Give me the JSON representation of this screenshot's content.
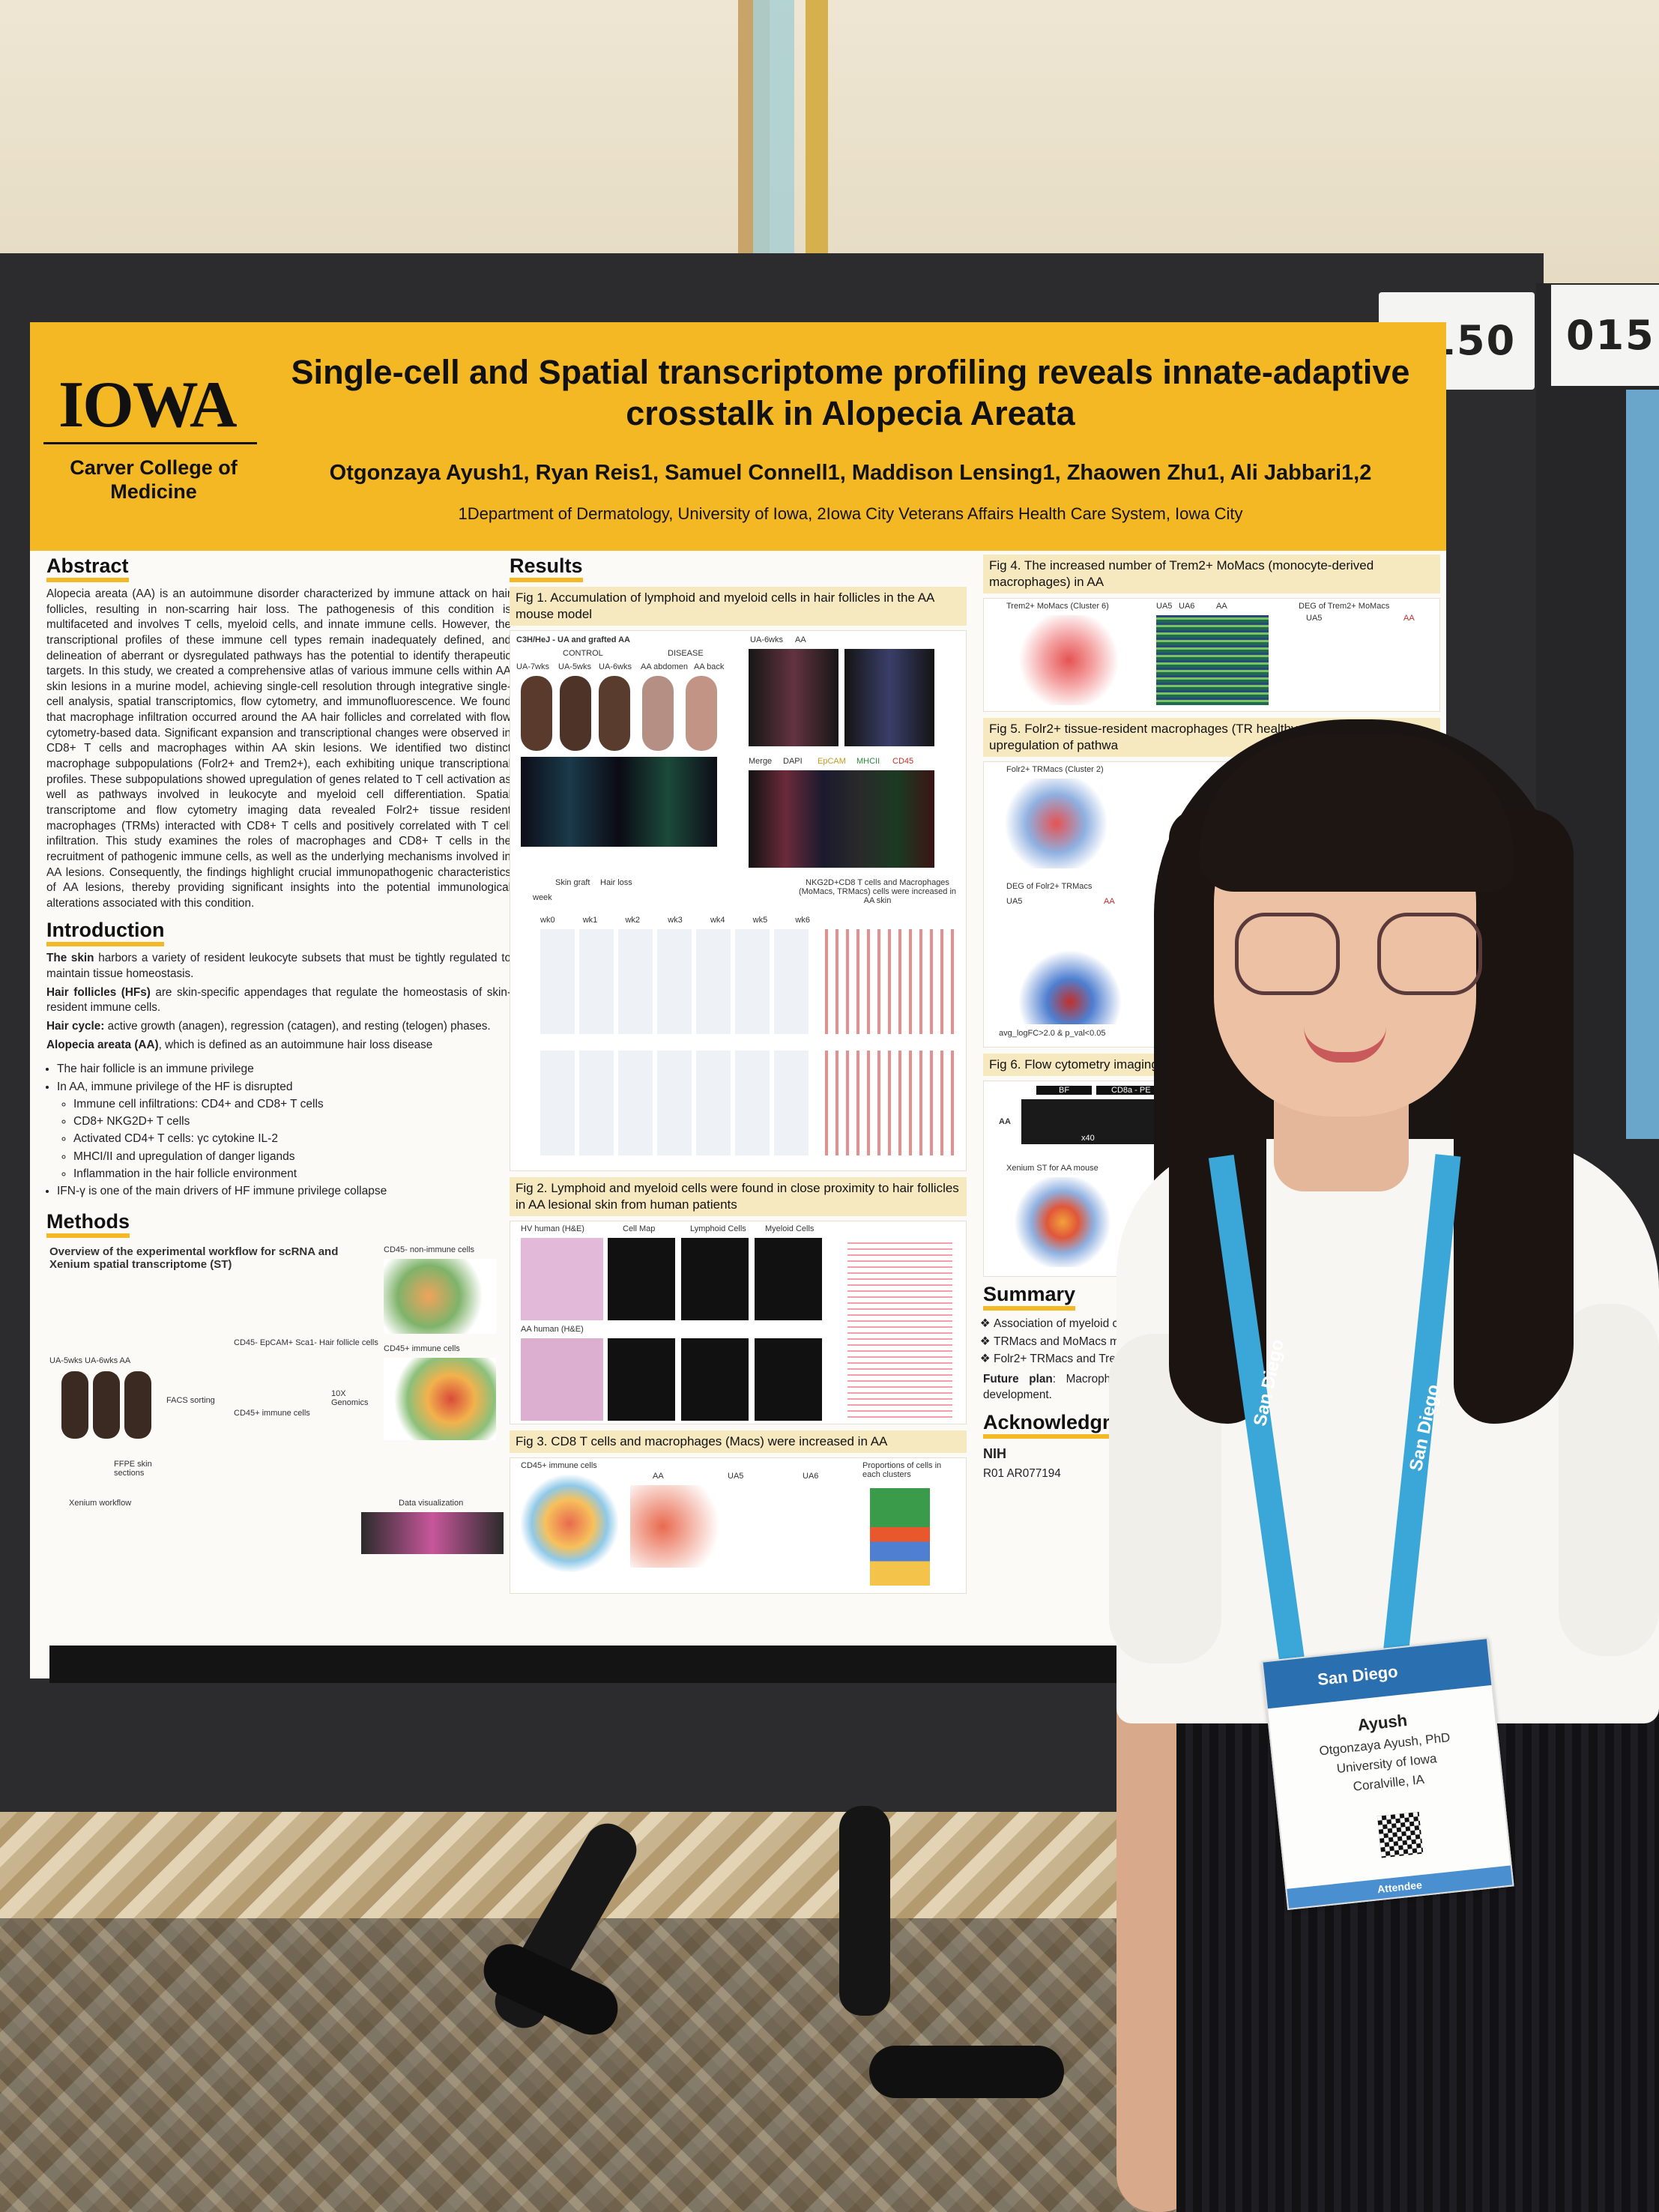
{
  "board": {
    "id": "0150",
    "id_next": "015"
  },
  "poster": {
    "logo": "IOWA",
    "college": "Carver College of Medicine",
    "title": "Single-cell and Spatial transcriptome profiling reveals innate-adaptive crosstalk in Alopecia Areata",
    "authors": "Otgonzaya Ayush1, Ryan Reis1, Samuel Connell1, Maddison Lensing1, Zhaowen Zhu1, Ali Jabbari1,2",
    "affiliations": "1Department of Dermatology, University of Iowa, 2Iowa City Veterans Affairs Health Care System, Iowa City",
    "abstract": {
      "heading": "Abstract",
      "text": "Alopecia areata (AA) is an autoimmune disorder characterized by immune attack on hair follicles, resulting in non-scarring hair loss. The pathogenesis of this condition is multifaceted and involves T cells, myeloid cells, and innate immune cells. However, the transcriptional profiles of these immune cell types remain inadequately defined, and delineation of aberrant or dysregulated pathways has the potential to identify therapeutic targets. In this study, we created a comprehensive atlas of various immune cells within AA skin lesions in a murine model, achieving single-cell resolution through integrative single-cell analysis, spatial transcriptomics, flow cytometry, and immunofluorescence. We found that macrophage infiltration occurred around the AA hair follicles and correlated with flow cytometry-based data. Significant expansion and transcriptional changes were observed in CD8+ T cells and macrophages within AA skin lesions. We identified two distinct macrophage subpopulations (Folr2+ and Trem2+), each exhibiting unique transcriptional profiles. These subpopulations showed upregulation of genes related to T cell activation as well as pathways involved in leukocyte and myeloid cell differentiation. Spatial transcriptome and flow cytometry imaging data revealed Folr2+ tissue resident macrophages (TRMs) interacted with CD8+ T cells and positively correlated with T cell infiltration. This study examines the roles of macrophages and CD8+ T cells in the recruitment of pathogenic immune cells, as well as the underlying mechanisms involved in AA lesions. Consequently, the findings highlight crucial immunopathogenic characteristics of AA lesions, thereby providing significant insights into the potential immunological alterations associated with this condition."
    },
    "introduction": {
      "heading": "Introduction",
      "p1_bold": "The skin",
      "p1": " harbors a variety of resident leukocyte subsets that must be tightly regulated to maintain tissue homeostasis.",
      "p2_bold": "Hair follicles (HFs)",
      "p2": " are skin-specific appendages that regulate the homeostasis of skin-resident immune cells.",
      "p3_bold": "Hair cycle:",
      "p3": " active growth (anagen), regression (catagen), and resting (telogen) phases.",
      "p4_bold": "Alopecia areata (AA)",
      "p4": ", which is defined as an autoimmune hair loss disease",
      "bullets": [
        "The hair follicle is an immune privilege",
        "In AA, immune privilege of the HF is disrupted"
      ],
      "sub": [
        "Immune cell infiltrations: CD4+ and CD8+ T cells",
        "CD8+ NKG2D+ T cells",
        "Activated CD4+ T cells: γc cytokine IL-2",
        "MHCI/II and upregulation of danger ligands",
        "Inflammation in the hair follicle environment"
      ],
      "last": "IFN-γ is one of the main drivers of HF immune privilege collapse"
    },
    "methods": {
      "heading": "Methods",
      "overview": "Overview of the experimental workflow for scRNA and Xenium spatial transcriptome (ST)",
      "labels": [
        "UA-5wks UA-6wks AA",
        "FACS sorting",
        "CD45- EpCAM+ Sca1- Hair follicle cells",
        "CD45+ immune cells",
        "10X Genomics",
        "FFPE skin sections",
        "Xenium workflow",
        "Data visualization",
        "CD45- non-immune cells",
        "CD45+ immune cells"
      ]
    },
    "results": {
      "heading": "Results",
      "fig1": "Fig 1. Accumulation of lymphoid and myeloid cells in hair follicles in the AA mouse model",
      "fig1_labels": [
        "C3H/HeJ - UA and grafted AA",
        "UA-7wks",
        "UA-5wks",
        "UA-6wks",
        "AA abdomen",
        "AA back",
        "CONTROL",
        "DISEASE",
        "UA-6wks",
        "AA",
        "Merge",
        "DAPI",
        "EpCAM",
        "MHCII",
        "CD45",
        "Skin graft",
        "Hair loss",
        "week",
        "NKG2D+CD8 T cells and Macrophages (MoMacs, TRMacs) cells were increased in AA skin",
        "wk0",
        "wk1",
        "wk2",
        "wk3",
        "wk4",
        "wk5",
        "wk6"
      ],
      "fig2": "Fig 2. Lymphoid and myeloid cells were found in close proximity to hair follicles in AA lesional skin from human patients",
      "fig2_labels": [
        "HV human (H&E)",
        "Cell Map",
        "Lymphoid Cells",
        "Myeloid Cells",
        "AA human (H&E)"
      ],
      "fig3": "Fig 3. CD8 T cells and macrophages (Macs) were increased in AA",
      "fig3_labels": [
        "CD45+ immune cells",
        "AA",
        "UA5",
        "UA6",
        "Proportions of cells in each clusters"
      ]
    },
    "right": {
      "fig4": "Fig 4. The increased number of Trem2+ MoMacs (monocyte-derived macrophages) in AA",
      "fig4_labels": [
        "Trem2+ MoMacs (Cluster 6)",
        "UA5",
        "UA6",
        "AA",
        "DEG of Trem2+ MoMacs",
        "UA5",
        "AA"
      ],
      "fig5": "Fig 5. Folr2+ tissue-resident macrophages (TR healthy and AA, and upregulation of pathwa",
      "fig5_labels": [
        "Folr2+ TRMacs (Cluster 2)",
        "DEG of Folr2+ TRMacs",
        "UA5",
        "AA",
        "avg_logFC>2.0 & p_val<0.05"
      ],
      "fig6": "Fig 6. Flow cytometry imaging an TRMacs interacted with CD8+ T c",
      "fig6_labels": [
        "BF",
        "CD8a - PE",
        "AA",
        "x40",
        "Xenium ST for AA mouse"
      ],
      "summary_heading": "Summary",
      "summary": [
        "Association of myeloid ce",
        "TRMacs and MoMacs ma",
        "Folr2+ TRMacs and Tre SPP, MIF, CXCL"
      ],
      "future_bold": "Future plan",
      "future": ": Macrophage We will utilize various imp understand the interact development.",
      "ack_heading": "Acknowledgme",
      "grant": "R01 AR077194",
      "nih": "NIH"
    }
  },
  "badge": {
    "event": "San Diego",
    "name": "Ayush",
    "full_name": "Otgonzaya Ayush, PhD",
    "org": "University of Iowa",
    "city": "Coralville, IA",
    "type": "Attendee"
  },
  "lanyard": {
    "text": "San Diego"
  },
  "colors": {
    "accent": "#f3b824",
    "board": "#2c2c2e",
    "lanyard": "#3aa7d8"
  }
}
